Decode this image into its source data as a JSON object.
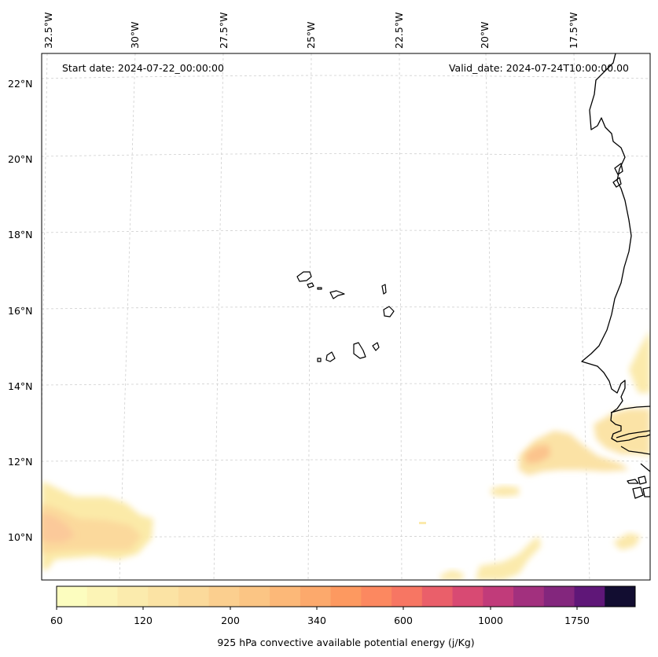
{
  "header": {
    "start_date": "Start date: 2024-07-22_00:00:00",
    "valid_date": "Valid_date: 2024-07-24T10:00:00.00"
  },
  "longitude_labels": [
    "32.5°W",
    "30°W",
    "27.5°W",
    "25°W",
    "22.5°W",
    "20°W",
    "17.5°W"
  ],
  "latitude_labels": [
    "22°N",
    "20°N",
    "18°N",
    "16°N",
    "14°N",
    "12°N",
    "10°N"
  ],
  "colorbar": {
    "label": "925 hPa convective available potential energy (j/Kg)",
    "tick_labels": [
      "60",
      "120",
      "200",
      "340",
      "600",
      "1000",
      "1750"
    ],
    "colors": [
      "#fcfdbf",
      "#fcf4b6",
      "#fbebad",
      "#fbe3a4",
      "#fbda9b",
      "#fbcf8f",
      "#fbc584",
      "#fcb878",
      "#fca96c",
      "#fd9960",
      "#fc8860",
      "#f77663",
      "#ea5f6a",
      "#d84a73",
      "#c13b7a",
      "#a2307e",
      "#83267d",
      "#5f1778",
      "#120d31"
    ]
  },
  "field": {
    "name": "925 hPa convective available potential energy",
    "units": "j/Kg",
    "regions": [
      "southwest corner near 32.5°W 10°N",
      "southeast near 20°W 12°N",
      "coastal Senegal/Gambia",
      "southern strip near 20°W 9°N"
    ],
    "max_level": "340"
  }
}
